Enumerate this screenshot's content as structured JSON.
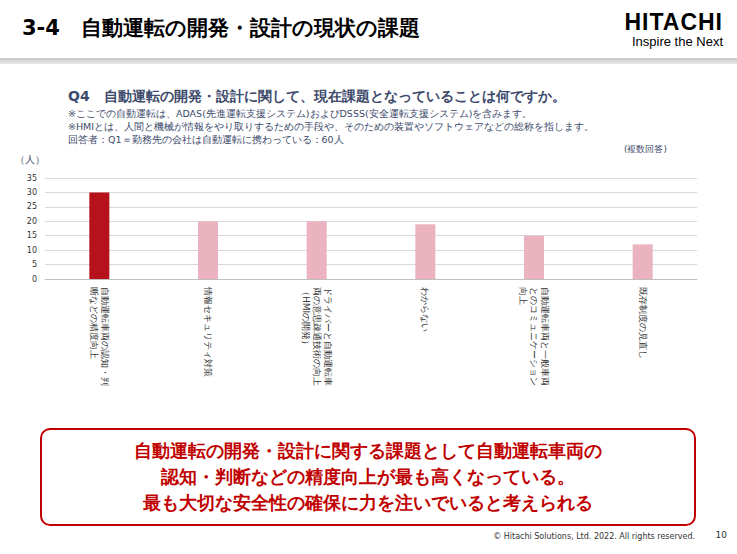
{
  "page": {
    "title": "3-4　自動運転の開発・設計の現状の課題",
    "logo": "HITACHI",
    "tagline": "Inspire the Next",
    "question": "Q4　自動運転の開発・設計に関して、現在課題となっていることは何ですか。",
    "notes": [
      "※ここでの自動運転は、ADAS(先進運転支援システム)およびDSSS(安全運転支援システム)を含みます。",
      "※HMIとは、人間と機械が情報をやり取りするための手段や、そのための装置やソフトウェアなどの総称を指します。",
      "回答者：Q1＝勤務先の会社は自動運転に携わっている：60人"
    ],
    "conclusion": [
      "自動運転の開発・設計に関する課題として自動運転車両の",
      "認知・判断などの精度向上が最も高くなっている。",
      "最も大切な安全性の確保に力を注いでいると考えられる"
    ],
    "copyright": "© Hitachi Solutions, Ltd. 2022. All rights reserved.",
    "page_number": 10
  },
  "chart_data": {
    "type": "bar",
    "ylabel": "（人）",
    "annotations": [
      "(複数回答)"
    ],
    "categories": [
      "自動運転車両の認知・判断などの精度向上",
      "情報セキュリティ対策",
      "ドライバーと自動運転車両の意思疎通技術の向上（HMIの開発）",
      "わからない",
      "自動運転車両と一般車両とのコミュニケーション向上",
      "既存制度の見直し"
    ],
    "values": [
      30,
      20,
      20,
      19,
      15,
      12
    ],
    "colors": [
      "#b5121b",
      "#ebb3c0",
      "#ebb3c0",
      "#ebb3c0",
      "#ebb3c0",
      "#ebb3c0"
    ],
    "ylim": [
      0,
      35
    ],
    "yticks": [
      0,
      5,
      10,
      15,
      20,
      25,
      30,
      35
    ],
    "grid": true
  }
}
